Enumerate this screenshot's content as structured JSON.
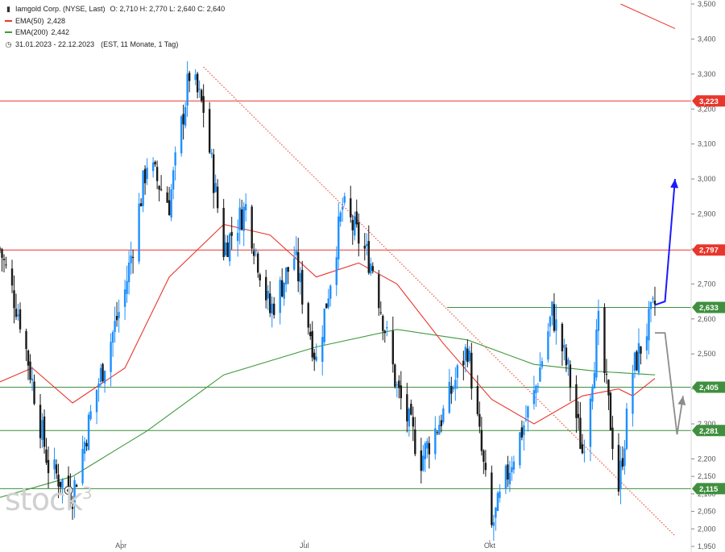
{
  "header": {
    "title": "Iamgold Corp. (NYSE, Last)",
    "ohlc": "O: 2,710  H: 2,770  L: 2,640  C: 2,640",
    "ema50_label": "EMA(50)",
    "ema50_value": "2,428",
    "ema200_label": "EMA(200)",
    "ema200_value": "2,442",
    "period": "31.01.2023 - 22.12.2023",
    "period_detail": "(EST, 11 Monate, 1 Tag)"
  },
  "watermark": {
    "text": "stock",
    "sup": "3"
  },
  "colors": {
    "candle_up": "#1e90ff",
    "candle_down": "#1a1a1a",
    "ema50": "#e8362c",
    "ema200": "#3f9a3f",
    "resistance": "#e8362c",
    "support": "#3f8f3f",
    "arrow_up": "#1a1aff",
    "arrow_alt": "#8c8c8c"
  },
  "chart_data": {
    "type": "candlestick",
    "title": "Iamgold Corp. (NYSE, Last)",
    "x_labels": [
      "Apr",
      "Jul",
      "Okt"
    ],
    "y_ticks": [
      "3,500",
      "3,400",
      "3,300",
      "3,200",
      "3,100",
      "3,000",
      "2,900",
      "2,800",
      "2,700",
      "2,600",
      "2,500",
      "2,400",
      "2,300",
      "2,200",
      "2,150",
      "2,100",
      "2,050",
      "2,000",
      "1,950"
    ],
    "ylim": [
      1.95,
      3.5
    ],
    "date_range": [
      "2023-01-31",
      "2023-12-22"
    ],
    "price_path": [
      [
        "2023-01-31",
        2.8
      ],
      [
        "2023-02-10",
        2.6
      ],
      [
        "2023-02-24",
        2.18
      ],
      [
        "2023-03-08",
        2.1
      ],
      [
        "2023-03-20",
        2.4
      ],
      [
        "2023-04-03",
        2.68
      ],
      [
        "2023-04-14",
        3.05
      ],
      [
        "2023-04-25",
        2.93
      ],
      [
        "2023-05-05",
        3.3
      ],
      [
        "2023-05-12",
        3.2
      ],
      [
        "2023-05-22",
        2.8
      ],
      [
        "2023-06-02",
        2.92
      ],
      [
        "2023-06-14",
        2.62
      ],
      [
        "2023-06-26",
        2.78
      ],
      [
        "2023-07-07",
        2.48
      ],
      [
        "2023-07-20",
        2.92
      ],
      [
        "2023-08-04",
        2.75
      ],
      [
        "2023-08-16",
        2.4
      ],
      [
        "2023-08-28",
        2.2
      ],
      [
        "2023-09-08",
        2.33
      ],
      [
        "2023-09-20",
        2.52
      ],
      [
        "2023-10-02",
        2.0
      ],
      [
        "2023-10-12",
        2.2
      ],
      [
        "2023-10-23",
        2.38
      ],
      [
        "2023-11-01",
        2.62
      ],
      [
        "2023-11-09",
        2.45
      ],
      [
        "2023-11-16",
        2.22
      ],
      [
        "2023-11-24",
        2.58
      ],
      [
        "2023-12-04",
        2.12
      ],
      [
        "2023-12-11",
        2.45
      ],
      [
        "2023-12-22",
        2.64
      ]
    ],
    "ema50": [
      [
        "2023-01-31",
        2.42
      ],
      [
        "2023-02-16",
        2.46
      ],
      [
        "2023-03-08",
        2.36
      ],
      [
        "2023-04-03",
        2.46
      ],
      [
        "2023-04-25",
        2.72
      ],
      [
        "2023-05-22",
        2.87
      ],
      [
        "2023-06-14",
        2.84
      ],
      [
        "2023-07-07",
        2.72
      ],
      [
        "2023-07-28",
        2.76
      ],
      [
        "2023-08-16",
        2.7
      ],
      [
        "2023-09-08",
        2.53
      ],
      [
        "2023-10-02",
        2.37
      ],
      [
        "2023-10-23",
        2.3
      ],
      [
        "2023-11-16",
        2.38
      ],
      [
        "2023-12-04",
        2.4
      ],
      [
        "2023-12-11",
        2.38
      ],
      [
        "2023-12-22",
        2.43
      ]
    ],
    "ema200": [
      [
        "2023-01-31",
        2.09
      ],
      [
        "2023-03-08",
        2.15
      ],
      [
        "2023-04-14",
        2.28
      ],
      [
        "2023-05-22",
        2.44
      ],
      [
        "2023-07-07",
        2.52
      ],
      [
        "2023-08-16",
        2.57
      ],
      [
        "2023-09-20",
        2.54
      ],
      [
        "2023-10-23",
        2.47
      ],
      [
        "2023-11-24",
        2.45
      ],
      [
        "2023-12-22",
        2.44
      ]
    ],
    "horizontal_levels": [
      {
        "value": 3.223,
        "label": "3,223",
        "kind": "resistance"
      },
      {
        "value": 2.797,
        "label": "2,797",
        "kind": "resistance"
      },
      {
        "value": 2.633,
        "label": "2,633",
        "kind": "support"
      },
      {
        "value": 2.405,
        "label": "2,405",
        "kind": "support"
      },
      {
        "value": 2.281,
        "label": "2,281",
        "kind": "support"
      },
      {
        "value": 2.115,
        "label": "2,115",
        "kind": "support"
      }
    ],
    "trendlines": [
      {
        "kind": "dotted-downtrend",
        "from": [
          "2023-05-12",
          3.32
        ],
        "to": [
          "2024-01-01",
          1.98
        ]
      },
      {
        "kind": "upper-resistance-trend",
        "from": [
          "2023-12-05",
          3.5
        ],
        "to": [
          "2024-01-01",
          3.43
        ]
      }
    ],
    "scenario_arrows": [
      {
        "kind": "primary-bullish",
        "points": [
          [
            "2023-12-22",
            2.64
          ],
          [
            "2023-12-27",
            2.65
          ],
          [
            "2024-01-01",
            3.0
          ]
        ]
      },
      {
        "kind": "alternative",
        "points": [
          [
            "2023-12-22",
            2.56
          ],
          [
            "2023-12-27",
            2.56
          ],
          [
            "2024-01-02",
            2.27
          ],
          [
            "2024-01-05",
            2.38
          ]
        ]
      }
    ]
  }
}
